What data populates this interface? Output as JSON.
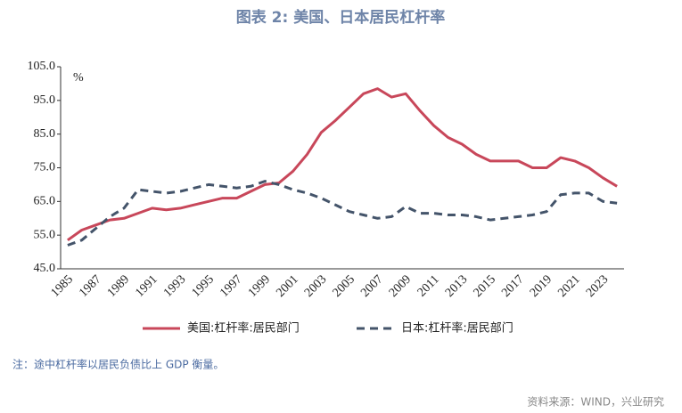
{
  "chart_data": {
    "type": "line",
    "title": "图表 2: 美国、日本居民杠杆率",
    "y_label": "%",
    "categories": [
      "1985",
      null,
      "1987",
      null,
      "1989",
      null,
      "1991",
      null,
      "1993",
      null,
      "1995",
      null,
      "1997",
      null,
      "1999",
      null,
      "2001",
      null,
      "2003",
      null,
      "2005",
      null,
      "2007",
      null,
      "2009",
      null,
      "2011",
      null,
      "2013",
      null,
      "2015",
      null,
      "2017",
      null,
      "2019",
      null,
      "2021",
      null,
      "2023",
      null
    ],
    "series": [
      {
        "name": "美国:杠杆率:居民部门",
        "color": "#c8475a",
        "dash": "solid",
        "values": [
          53.5,
          56.5,
          58,
          59.5,
          60,
          61.5,
          63,
          62.5,
          63,
          64,
          65,
          66,
          66,
          68,
          70,
          70.5,
          74,
          79,
          85.5,
          89,
          93,
          97,
          98.5,
          96,
          97,
          92,
          87.5,
          84,
          82,
          79,
          77,
          77,
          77,
          75,
          75,
          78,
          77,
          75,
          72,
          69.5
        ]
      },
      {
        "name": "日本:杠杆率:居民部门",
        "color": "#44546a",
        "dash": "dashed",
        "values": [
          52,
          53.5,
          57,
          60.5,
          63,
          68.5,
          68,
          67.5,
          68,
          69,
          70,
          69.5,
          69,
          69.5,
          71,
          70,
          68.5,
          67.5,
          66,
          64,
          62,
          61,
          60,
          60.5,
          63.5,
          61.5,
          61.5,
          61,
          61,
          60.5,
          59.5,
          60,
          60.5,
          61,
          62,
          67,
          67.5,
          67.5,
          65,
          64.5
        ]
      }
    ],
    "ylim": [
      45,
      105
    ],
    "yticks": [
      {
        "value": 45,
        "label": "45.0"
      },
      {
        "value": 55,
        "label": "55.0"
      },
      {
        "value": 65,
        "label": "65.0"
      },
      {
        "value": 75,
        "label": "75.0"
      },
      {
        "value": 85,
        "label": "85.0"
      },
      {
        "value": 95,
        "label": "95.0"
      },
      {
        "value": 105,
        "label": "105.0"
      }
    ],
    "grid": false,
    "legend": "bottom",
    "note": "注：途中杠杆率以居民负债比上 GDP 衡量。",
    "source": "资料来源：WIND，兴业研究"
  }
}
